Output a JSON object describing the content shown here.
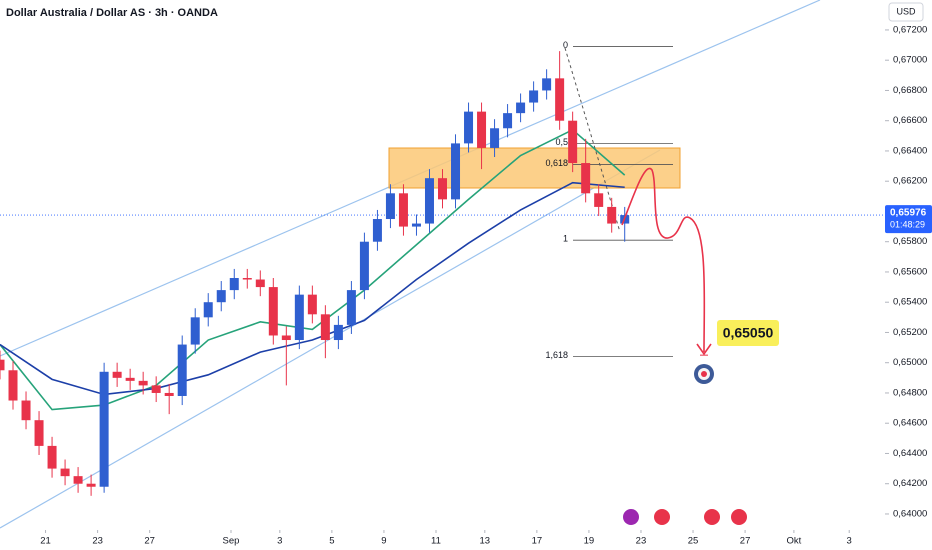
{
  "chart_data": {
    "type": "candlestick",
    "title": "Dollar Australia / Dollar AS · 3h · OANDA",
    "currency": "USD",
    "up_color": "#2f5fd0",
    "down_color": "#e8334a",
    "x": [
      0,
      4,
      8,
      12,
      16,
      20,
      24,
      28,
      32,
      36,
      40,
      44,
      48,
      52,
      56,
      60,
      64,
      68,
      72,
      76,
      80,
      84,
      88,
      92,
      96,
      100,
      104,
      108,
      112,
      116,
      120,
      124,
      128,
      132,
      136,
      140,
      144,
      148,
      152,
      156,
      160,
      164,
      168,
      172,
      176,
      180,
      184,
      188,
      192
    ],
    "open": [
      0.6502,
      0.6495,
      0.6475,
      0.6462,
      0.6445,
      0.643,
      0.6425,
      0.642,
      0.6418,
      0.6494,
      0.649,
      0.6488,
      0.6485,
      0.648,
      0.6478,
      0.6512,
      0.653,
      0.654,
      0.6548,
      0.6556,
      0.6555,
      0.655,
      0.6518,
      0.6515,
      0.6545,
      0.6532,
      0.6515,
      0.6525,
      0.6548,
      0.658,
      0.6595,
      0.6612,
      0.659,
      0.6592,
      0.6622,
      0.6608,
      0.6645,
      0.6666,
      0.6642,
      0.6655,
      0.6665,
      0.6672,
      0.668,
      0.6688,
      0.666,
      0.6632,
      0.6612,
      0.6603,
      0.6592
    ],
    "high": [
      0.6508,
      0.6501,
      0.6481,
      0.6468,
      0.6451,
      0.6436,
      0.6431,
      0.6426,
      0.65,
      0.65,
      0.6496,
      0.6494,
      0.6491,
      0.6486,
      0.6518,
      0.6536,
      0.6546,
      0.6554,
      0.6562,
      0.6562,
      0.6561,
      0.6556,
      0.6524,
      0.6551,
      0.6551,
      0.6538,
      0.6531,
      0.6554,
      0.6586,
      0.6601,
      0.6618,
      0.6618,
      0.6598,
      0.6628,
      0.6628,
      0.6651,
      0.6672,
      0.6672,
      0.6661,
      0.6671,
      0.6678,
      0.6686,
      0.6694,
      0.6706,
      0.6666,
      0.6648,
      0.6618,
      0.6609,
      0.6603
    ],
    "low": [
      0.6489,
      0.6469,
      0.6456,
      0.6439,
      0.6424,
      0.6419,
      0.6414,
      0.6412,
      0.6414,
      0.6484,
      0.6482,
      0.6479,
      0.6474,
      0.6466,
      0.6472,
      0.6506,
      0.6524,
      0.6534,
      0.6542,
      0.6549,
      0.6544,
      0.6512,
      0.6485,
      0.6509,
      0.6526,
      0.6503,
      0.6509,
      0.6519,
      0.6542,
      0.6574,
      0.6589,
      0.6584,
      0.6584,
      0.6586,
      0.6602,
      0.6602,
      0.6639,
      0.6628,
      0.6636,
      0.6649,
      0.6659,
      0.6666,
      0.6674,
      0.6654,
      0.6626,
      0.6606,
      0.6597,
      0.6586,
      0.658
    ],
    "close": [
      0.6495,
      0.6475,
      0.6462,
      0.6445,
      0.643,
      0.6425,
      0.642,
      0.6418,
      0.6494,
      0.649,
      0.6488,
      0.6485,
      0.648,
      0.6478,
      0.6512,
      0.653,
      0.654,
      0.6548,
      0.6556,
      0.6555,
      0.655,
      0.6518,
      0.6515,
      0.6545,
      0.6532,
      0.6515,
      0.6525,
      0.6548,
      0.658,
      0.6595,
      0.6612,
      0.659,
      0.6592,
      0.6622,
      0.6608,
      0.6645,
      0.6666,
      0.6642,
      0.6655,
      0.6665,
      0.6672,
      0.668,
      0.6688,
      0.666,
      0.6632,
      0.6612,
      0.6603,
      0.6592,
      0.65976
    ],
    "overlays": [
      {
        "color": "#26a37a",
        "x": [
          0,
          16,
          32,
          48,
          64,
          80,
          96,
          112,
          128,
          144,
          160,
          176,
          192
        ],
        "values": [
          0.6512,
          0.6469,
          0.6472,
          0.6485,
          0.6515,
          0.6527,
          0.6522,
          0.6548,
          0.6578,
          0.6608,
          0.6637,
          0.6654,
          0.6624
        ]
      },
      {
        "color": "#1c3fa8",
        "x": [
          0,
          16,
          32,
          48,
          64,
          80,
          96,
          112,
          128,
          144,
          160,
          176,
          192
        ],
        "values": [
          0.6512,
          0.6489,
          0.6479,
          0.6483,
          0.6492,
          0.6507,
          0.6515,
          0.6528,
          0.6555,
          0.6579,
          0.6601,
          0.6619,
          0.6616
        ]
      }
    ],
    "fib_levels": [
      {
        "label": "0",
        "value": 0.6709
      },
      {
        "label": "0,5",
        "value": 0.6645
      },
      {
        "label": "0,618",
        "value": 0.6631
      },
      {
        "label": "1",
        "value": 0.6581
      },
      {
        "label": "1,618",
        "value": 0.6504
      }
    ],
    "last_price": {
      "value": 0.65976,
      "label": "0,65976"
    },
    "countdown": "01:48:29",
    "target": {
      "value": 0.6505,
      "label": "0,65050"
    },
    "xlim": [
      0,
      272
    ],
    "ylim": [
      0.63894,
      0.67398
    ],
    "yticks": [
      {
        "value": 0.672,
        "label": "0,67200"
      },
      {
        "value": 0.67,
        "label": "0,67000"
      },
      {
        "value": 0.668,
        "label": "0,66800"
      },
      {
        "value": 0.666,
        "label": "0,66600"
      },
      {
        "value": 0.664,
        "label": "0,66400"
      },
      {
        "value": 0.662,
        "label": "0,66200"
      },
      {
        "value": 0.66,
        "label": "0,66000"
      },
      {
        "value": 0.658,
        "label": "0,65800"
      },
      {
        "value": 0.656,
        "label": "0,65600"
      },
      {
        "value": 0.654,
        "label": "0,65400"
      },
      {
        "value": 0.652,
        "label": "0,65200"
      },
      {
        "value": 0.65,
        "label": "0,65000"
      },
      {
        "value": 0.648,
        "label": "0,64800"
      },
      {
        "value": 0.646,
        "label": "0,64600"
      },
      {
        "value": 0.644,
        "label": "0,64400"
      },
      {
        "value": 0.642,
        "label": "0,64200"
      },
      {
        "value": 0.64,
        "label": "0,64000"
      }
    ],
    "xticks": [
      {
        "value": 14,
        "label": "21"
      },
      {
        "value": 30,
        "label": "23"
      },
      {
        "value": 46,
        "label": "27"
      },
      {
        "value": 71,
        "label": "Sep"
      },
      {
        "value": 86,
        "label": "3"
      },
      {
        "value": 102,
        "label": "5"
      },
      {
        "value": 118,
        "label": "9"
      },
      {
        "value": 134,
        "label": "11"
      },
      {
        "value": 149,
        "label": "13"
      },
      {
        "value": 165,
        "label": "17"
      },
      {
        "value": 181,
        "label": "19"
      },
      {
        "value": 197,
        "label": "23"
      },
      {
        "value": 213,
        "label": "25"
      },
      {
        "value": 229,
        "label": "27"
      },
      {
        "value": 244,
        "label": "Okt"
      },
      {
        "value": 261,
        "label": "3"
      }
    ]
  }
}
